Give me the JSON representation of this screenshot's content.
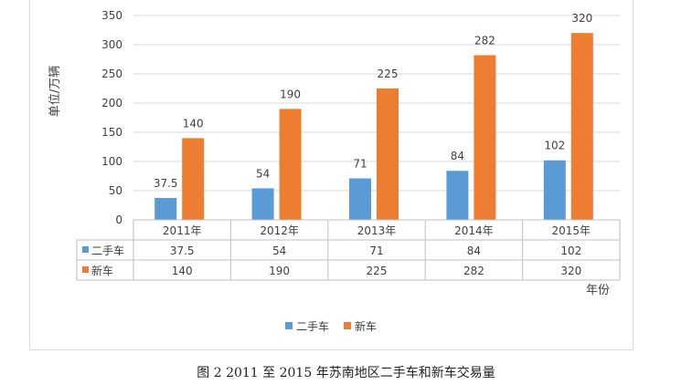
{
  "chart_data": {
    "type": "bar",
    "categories": [
      "2011年",
      "2012年",
      "2013年",
      "2014年",
      "2015年"
    ],
    "series": [
      {
        "name": "二手车",
        "values": [
          37.5,
          54,
          71,
          84,
          102
        ],
        "color": "#5b9bd5"
      },
      {
        "name": "新车",
        "values": [
          140,
          190,
          225,
          282,
          320
        ],
        "color": "#ed7d31"
      }
    ],
    "ylabel": "单位/万辆",
    "xlabel": "年份",
    "ylim": [
      0,
      350
    ],
    "yticks": [
      0,
      50,
      100,
      150,
      200,
      250,
      300,
      350
    ],
    "ytick_labels": [
      "0",
      "50",
      "100",
      "150",
      "200",
      "250",
      "300",
      "350"
    ],
    "data_labels": [
      [
        "37.5",
        "54",
        "71",
        "84",
        "102"
      ],
      [
        "140",
        "190",
        "225",
        "282",
        "320"
      ]
    ],
    "grid": true,
    "data_table": true,
    "legend_position": "bottom"
  },
  "caption": "图 2 2011 至 2015 年苏南地区二手车和新车交易量"
}
